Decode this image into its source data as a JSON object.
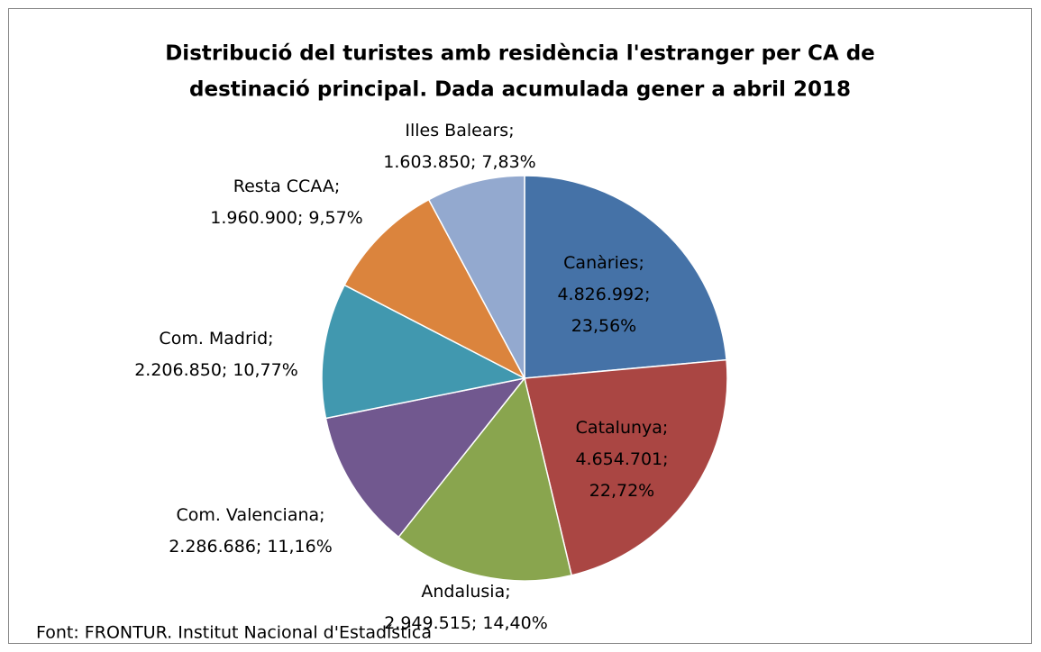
{
  "chart_data": {
    "type": "pie",
    "title": [
      "Distribució del turistes amb residència l'estranger per  CA de",
      "destinació principal. Dada acumulada gener a abril 2018"
    ],
    "categories": [
      "Canàries",
      "Catalunya",
      "Andalusia",
      "Com. Valenciana",
      "Com. Madrid",
      "Resta CCAA",
      "Illes Balears"
    ],
    "values": [
      4826992,
      4654701,
      2949515,
      2286686,
      2206850,
      1960900,
      1603850
    ],
    "value_labels": [
      "4.826.992",
      "4.654.701",
      "2.949.515",
      "2.286.686",
      "2.206.850",
      "1.960.900",
      "1.603.850"
    ],
    "percentages": [
      23.56,
      22.72,
      14.4,
      11.16,
      10.77,
      9.57,
      7.83
    ],
    "percentage_labels": [
      "23,56%",
      "22,72%",
      "14,40%",
      "11,16%",
      "10,77%",
      "9,57%",
      "7,83%"
    ],
    "label_separator": ";",
    "colors": [
      "#4572a7",
      "#aa4643",
      "#89a54e",
      "#71588f",
      "#4198af",
      "#db843d",
      "#93a9cf"
    ],
    "source": "Font: FRONTUR. Institut Nacional d'Estadística"
  }
}
